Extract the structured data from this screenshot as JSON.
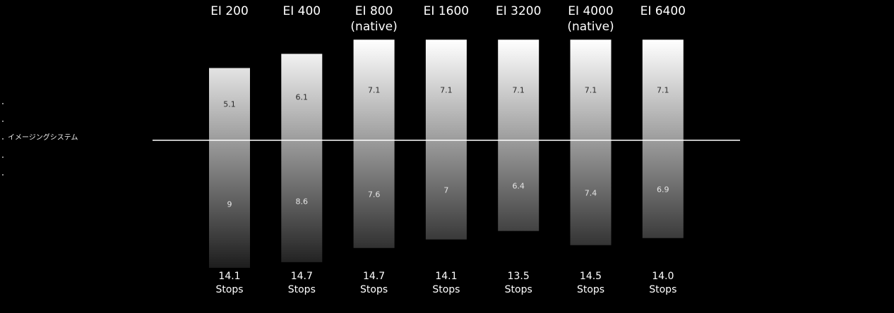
{
  "sidebar": {
    "items": [
      {
        "label": ""
      },
      {
        "label": ""
      },
      {
        "label": "イメージングシステム"
      },
      {
        "label": ""
      },
      {
        "label": ""
      }
    ]
  },
  "chart_data": {
    "type": "bar",
    "categories": [
      [
        "EI 200"
      ],
      [
        "EI 400"
      ],
      [
        "EI 800",
        "(native)"
      ],
      [
        "EI 1600"
      ],
      [
        "EI 3200"
      ],
      [
        "EI 4000",
        "(native)"
      ],
      [
        "EI 6400"
      ]
    ],
    "series": [
      {
        "values": [
          5.1,
          6.1,
          7.1,
          7.1,
          7.1,
          7.1,
          7.1
        ]
      },
      {
        "values": [
          9,
          8.6,
          7.6,
          7,
          6.4,
          7.4,
          6.9
        ]
      }
    ],
    "totals": [
      "14.1",
      "14.7",
      "14.7",
      "14.1",
      "13.5",
      "14.5",
      "14.0"
    ],
    "total_unit": "Stops",
    "title": "",
    "xlabel": "",
    "ylabel": "",
    "reference_line": 0
  }
}
